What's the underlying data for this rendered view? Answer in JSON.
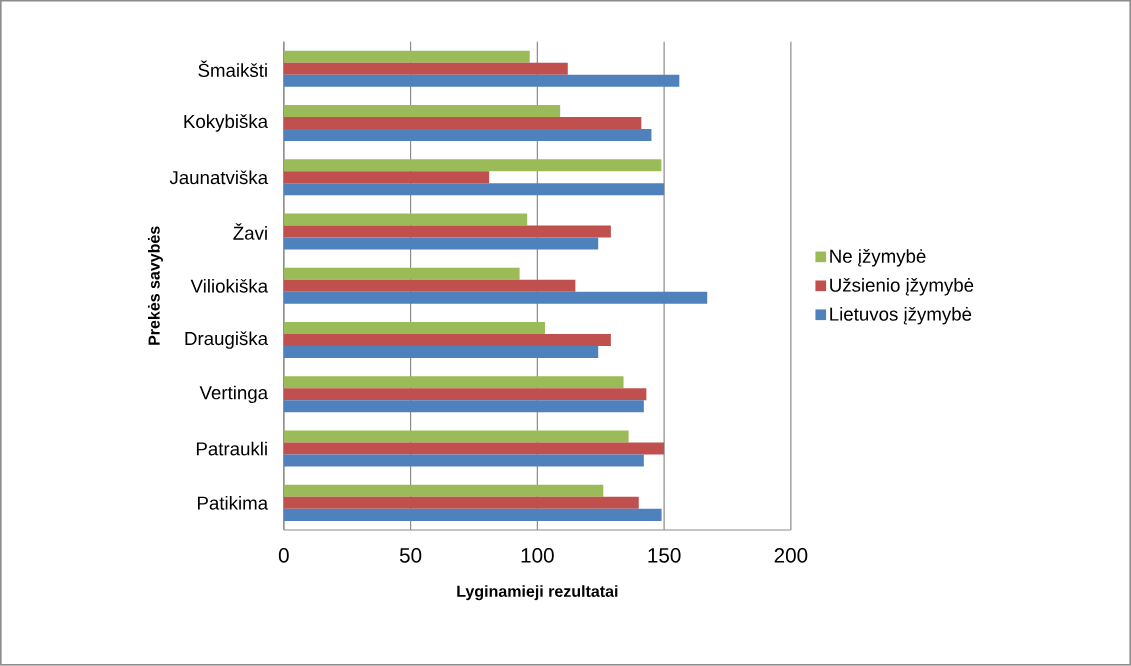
{
  "chart_data": {
    "type": "bar",
    "orientation": "horizontal",
    "xlabel": "Lyginamieji rezultatai",
    "ylabel": "Prekės savybės",
    "categories": [
      "Šmaikšti",
      "Kokybiška",
      "Jaunatviška",
      "Žavi",
      "Viliokiška",
      "Draugiška",
      "Vertinga",
      "Patraukli",
      "Patikima"
    ],
    "series": [
      {
        "name": "Ne įžymybė",
        "color": "#9bbb59",
        "values": [
          97,
          109,
          149,
          96,
          93,
          103,
          134,
          136,
          126
        ]
      },
      {
        "name": "Užsienio įžymybė",
        "color": "#c0504d",
        "values": [
          112,
          141,
          81,
          129,
          115,
          129,
          143,
          150,
          140
        ]
      },
      {
        "name": "Lietuvos įžymybė",
        "color": "#4f81bd",
        "values": [
          156,
          145,
          150,
          124,
          167,
          124,
          142,
          142,
          149
        ]
      }
    ],
    "xlim": [
      0,
      200
    ],
    "xticks": [
      0,
      50,
      100,
      150,
      200
    ],
    "grid": "x",
    "legend": "right"
  }
}
